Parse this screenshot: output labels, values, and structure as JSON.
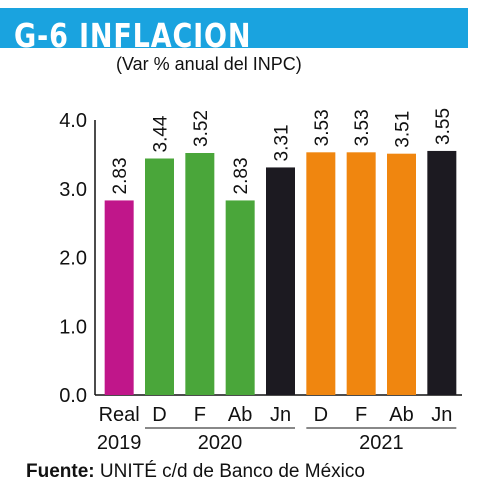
{
  "title": "G-6 INFLACION",
  "subtitle": "(Var % anual del INPC)",
  "source_label": "Fuente:",
  "source_text": "UNITÉ c/d de Banco de México",
  "colors": {
    "title_bar": "#1aa3df",
    "real": "#c0168a",
    "y2020": "#4aa63a",
    "y2021": "#f0860f",
    "jn": "#1c1a21"
  },
  "chart_data": {
    "type": "bar",
    "categories": [
      "Real",
      "D",
      "F",
      "Ab",
      "Jn",
      "D",
      "F",
      "Ab",
      "Jn"
    ],
    "values": [
      2.83,
      3.44,
      3.52,
      2.83,
      3.31,
      3.53,
      3.53,
      3.51,
      3.55
    ],
    "data_labels": [
      "2.83",
      "3.44",
      "3.52",
      "2.83",
      "3.31",
      "3.53",
      "3.53",
      "3.51",
      "3.55"
    ],
    "bar_colors": [
      "real",
      "y2020",
      "y2020",
      "y2020",
      "jn",
      "y2021",
      "y2021",
      "y2021",
      "jn"
    ],
    "groups": [
      {
        "label": "2019",
        "from": 0,
        "to": 0
      },
      {
        "label": "2020",
        "from": 1,
        "to": 4
      },
      {
        "label": "2021",
        "from": 5,
        "to": 8
      }
    ],
    "yticks": [
      "0.0",
      "1.0",
      "2.0",
      "3.0",
      "4.0"
    ],
    "ylim": [
      0,
      4
    ],
    "grid": false
  }
}
